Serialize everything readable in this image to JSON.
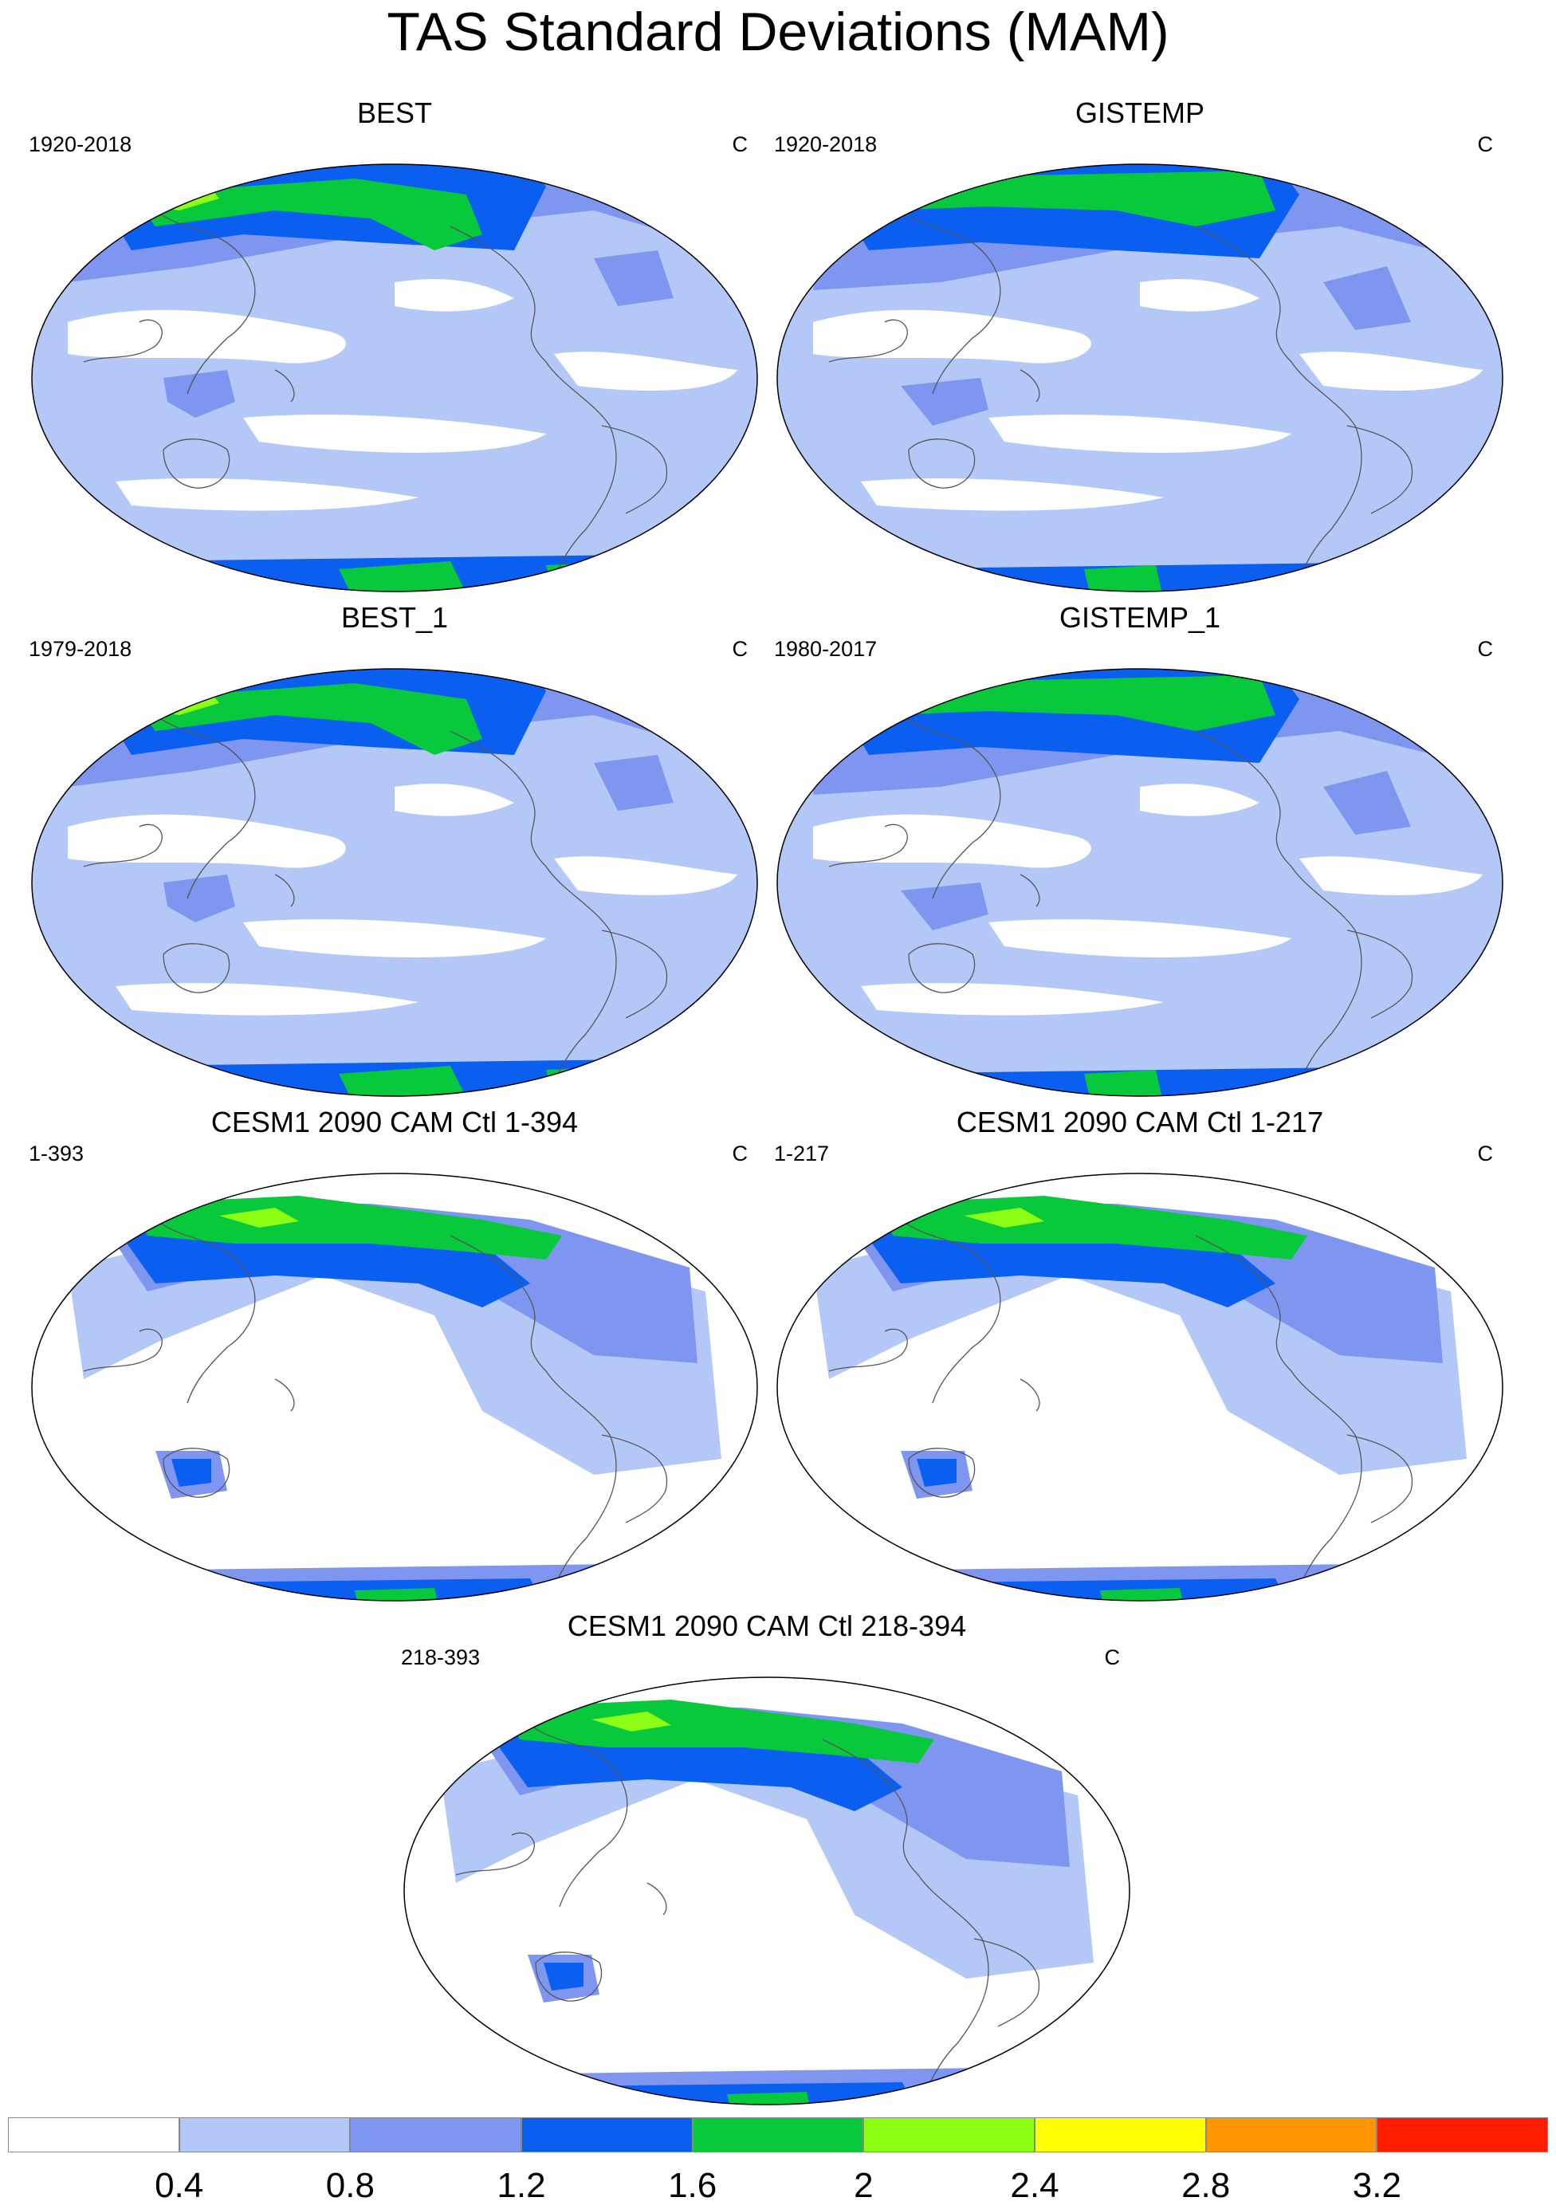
{
  "title": "TAS Standard Deviations (MAM)",
  "panels": [
    {
      "id": "p1",
      "title": "BEST",
      "period": "1920-2018",
      "unit": "C",
      "style": "obs_best"
    },
    {
      "id": "p2",
      "title": "GISTEMP",
      "period": "1920-2018",
      "unit": "C",
      "style": "obs_gis"
    },
    {
      "id": "p3",
      "title": "BEST_1",
      "period": "1979-2018",
      "unit": "C",
      "style": "obs_best"
    },
    {
      "id": "p4",
      "title": "GISTEMP_1",
      "period": "1980-2017",
      "unit": "C",
      "style": "obs_gis"
    },
    {
      "id": "p5",
      "title": "CESM1 2090 CAM Ctl 1-394",
      "period": "1-393",
      "unit": "C",
      "style": "model"
    },
    {
      "id": "p6",
      "title": "CESM1 2090 CAM Ctl 1-217",
      "period": "1-217",
      "unit": "C",
      "style": "model"
    },
    {
      "id": "p7",
      "title": "CESM1 2090 CAM Ctl 218-394",
      "period": "218-393",
      "unit": "C",
      "style": "model"
    }
  ],
  "colorbar": {
    "levels": [
      "0.4",
      "0.8",
      "1.2",
      "1.6",
      "2",
      "2.4",
      "2.8",
      "3.2"
    ],
    "colors": [
      "#ffffff",
      "#b4c8f8",
      "#7f96f0",
      "#0a5ff0",
      "#08c83c",
      "#8cff14",
      "#ffff00",
      "#ff9600",
      "#ff1e00"
    ]
  }
}
